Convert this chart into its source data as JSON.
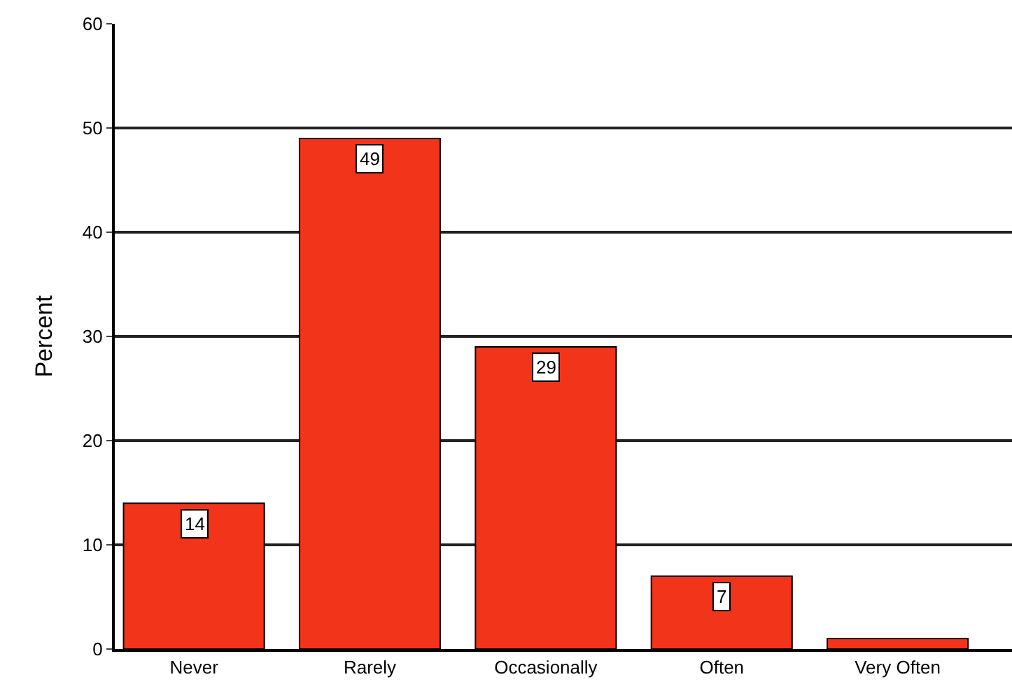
{
  "chart_data": {
    "type": "bar",
    "ylabel": "Percent",
    "categories": [
      "Never",
      "Rarely",
      "Occasionally",
      "Often",
      "Very Often"
    ],
    "values": [
      14,
      49,
      29,
      7,
      1
    ],
    "value_labels": [
      "14",
      "49",
      "29",
      "7",
      null
    ],
    "color": "#f2341a",
    "ylim": [
      0,
      60
    ],
    "yticks": [
      0,
      10,
      20,
      30,
      40,
      50,
      60
    ],
    "grid": "y"
  }
}
